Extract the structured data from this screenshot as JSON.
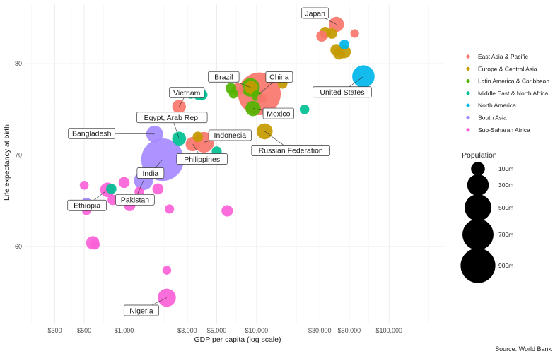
{
  "chart_data": {
    "type": "scatter",
    "title": "",
    "xlabel": "GDP per capita (log scale)",
    "ylabel": "Life expectancy at birth",
    "caption": "Source: World Bank",
    "x_scale": "log",
    "xlim": [
      180,
      260000
    ],
    "ylim": [
      51.5,
      86.5
    ],
    "x_ticks": [
      300,
      500,
      1000,
      3000,
      5000,
      10000,
      30000,
      50000,
      100000
    ],
    "x_tick_labels": [
      "$300",
      "$500",
      "$1,000",
      "$3,000",
      "$5,000",
      "$10,000",
      "$30,000",
      "$50,000",
      "$100,000"
    ],
    "y_ticks": [
      60,
      70,
      80
    ],
    "y_tick_labels": [
      "60",
      "70",
      "80"
    ],
    "grid": true,
    "legend_position": "right",
    "color_legend": [
      {
        "region": "East Asia & Pacific",
        "label": "East Asia & Pacific",
        "color": "#F8766D"
      },
      {
        "region": "Europe & Central Asia",
        "label": "Europe & Central Asia",
        "color": "#C49A00"
      },
      {
        "region": "Latin America & Caribbean",
        "label": "Latin America & Caribbean",
        "color": "#53B400"
      },
      {
        "region": "Middle East & North Africa",
        "label": "Middle East & North Africa",
        "color": "#00C094"
      },
      {
        "region": "North America",
        "label": "North America",
        "color": "#00B6EB"
      },
      {
        "region": "South Asia",
        "label": "South Asia",
        "color": "#A58AFF"
      },
      {
        "region": "Sub-Saharan Africa",
        "label": "Sub-Saharan Africa",
        "color": "#FB61D7"
      }
    ],
    "size_legend": {
      "title": "Population",
      "entries": [
        {
          "pop_m": 100,
          "label": "100m"
        },
        {
          "pop_m": 300,
          "label": "300m"
        },
        {
          "pop_m": 500,
          "label": "500m"
        },
        {
          "pop_m": 700,
          "label": "700m"
        },
        {
          "pop_m": 900,
          "label": "900m"
        }
      ]
    },
    "points": [
      {
        "country": "China",
        "region": "East Asia & Pacific",
        "x": 10500,
        "y": 76.7,
        "pop_m": 1410
      },
      {
        "country": "India",
        "region": "South Asia",
        "x": 1950,
        "y": 69.5,
        "pop_m": 1400
      },
      {
        "country": "United States",
        "region": "North America",
        "x": 64000,
        "y": 78.6,
        "pop_m": 330
      },
      {
        "country": "Indonesia",
        "region": "East Asia & Pacific",
        "x": 4000,
        "y": 71.4,
        "pop_m": 270
      },
      {
        "country": "Pakistan",
        "region": "South Asia",
        "x": 1400,
        "y": 67.2,
        "pop_m": 220
      },
      {
        "country": "Nigeria",
        "region": "Sub-Saharan Africa",
        "x": 2100,
        "y": 54.4,
        "pop_m": 200
      },
      {
        "country": "Brazil",
        "region": "Latin America & Caribbean",
        "x": 9000,
        "y": 77.4,
        "pop_m": 210
      },
      {
        "country": "Bangladesh",
        "region": "South Asia",
        "x": 1700,
        "y": 72.3,
        "pop_m": 165
      },
      {
        "country": "Russian Federation",
        "region": "Europe & Central Asia",
        "x": 11500,
        "y": 72.6,
        "pop_m": 145
      },
      {
        "country": "Mexico",
        "region": "Latin America & Caribbean",
        "x": 9400,
        "y": 75.1,
        "pop_m": 128
      },
      {
        "country": "Japan",
        "region": "East Asia & Pacific",
        "x": 40000,
        "y": 84.3,
        "pop_m": 126
      },
      {
        "country": "Ethiopia",
        "region": "Sub-Saharan Africa",
        "x": 750,
        "y": 66.2,
        "pop_m": 115
      },
      {
        "country": "Philippines",
        "region": "East Asia & Pacific",
        "x": 3300,
        "y": 71.2,
        "pop_m": 110
      },
      {
        "country": "Egypt, Arab Rep.",
        "region": "Middle East & North Africa",
        "x": 2600,
        "y": 71.8,
        "pop_m": 100
      },
      {
        "country": "Vietnam",
        "region": "East Asia & Pacific",
        "x": 2600,
        "y": 75.3,
        "pop_m": 97
      },
      {
        "country": "",
        "region": "Sub-Saharan Africa",
        "x": 580,
        "y": 60.4,
        "pop_m": 90
      },
      {
        "country": "",
        "region": "Europe & Central Asia",
        "x": 9100,
        "y": 77.4,
        "pop_m": 84
      },
      {
        "country": "",
        "region": "Europe & Central Asia",
        "x": 46000,
        "y": 81.3,
        "pop_m": 83
      },
      {
        "country": "",
        "region": "Middle East & North Africa",
        "x": 3700,
        "y": 76.7,
        "pop_m": 84
      },
      {
        "country": "",
        "region": "East Asia & Pacific",
        "x": 7200,
        "y": 77.2,
        "pop_m": 70
      },
      {
        "country": "",
        "region": "Europe & Central Asia",
        "x": 42000,
        "y": 81.1,
        "pop_m": 67
      },
      {
        "country": "",
        "region": "Europe & Central Asia",
        "x": 40000,
        "y": 81.5,
        "pop_m": 67
      },
      {
        "country": "",
        "region": "Sub-Saharan Africa",
        "x": 1100,
        "y": 64.5,
        "pop_m": 60
      },
      {
        "country": "",
        "region": "Europe & Central Asia",
        "x": 33000,
        "y": 83.4,
        "pop_m": 60
      },
      {
        "country": "",
        "region": "Sub-Saharan Africa",
        "x": 6000,
        "y": 63.9,
        "pop_m": 59
      },
      {
        "country": "",
        "region": "Sub-Saharan Africa",
        "x": 1800,
        "y": 66.3,
        "pop_m": 54
      },
      {
        "country": "",
        "region": "Sub-Saharan Africa",
        "x": 1000,
        "y": 67.0,
        "pop_m": 53
      },
      {
        "country": "",
        "region": "East Asia & Pacific",
        "x": 31000,
        "y": 83.0,
        "pop_m": 52
      },
      {
        "country": "",
        "region": "Latin America & Caribbean",
        "x": 6400,
        "y": 77.3,
        "pop_m": 50
      },
      {
        "country": "",
        "region": "Sub-Saharan Africa",
        "x": 820,
        "y": 65.1,
        "pop_m": 44
      },
      {
        "country": "",
        "region": "Europe & Central Asia",
        "x": 37000,
        "y": 83.3,
        "pop_m": 47
      },
      {
        "country": "",
        "region": "Middle East & North Africa",
        "x": 800,
        "y": 66.3,
        "pop_m": 44
      },
      {
        "country": "",
        "region": "Latin America & Caribbean",
        "x": 10000,
        "y": 76.5,
        "pop_m": 45
      },
      {
        "country": "",
        "region": "Middle East & North Africa",
        "x": 3900,
        "y": 76.6,
        "pop_m": 43
      },
      {
        "country": "",
        "region": "Europe & Central Asia",
        "x": 3600,
        "y": 72.0,
        "pop_m": 44
      },
      {
        "country": "",
        "region": "Middle East & North Africa",
        "x": 5000,
        "y": 70.4,
        "pop_m": 40
      },
      {
        "country": "",
        "region": "North America",
        "x": 46000,
        "y": 82.1,
        "pop_m": 38
      },
      {
        "country": "",
        "region": "Europe & Central Asia",
        "x": 15700,
        "y": 77.8,
        "pop_m": 38
      },
      {
        "country": "",
        "region": "Sub-Saharan Africa",
        "x": 600,
        "y": 60.2,
        "pop_m": 39
      },
      {
        "country": "",
        "region": "Middle East & North Africa",
        "x": 3200,
        "y": 76.7,
        "pop_m": 37
      },
      {
        "country": "",
        "region": "Middle East & North Africa",
        "x": 23000,
        "y": 75.0,
        "pop_m": 35
      },
      {
        "country": "",
        "region": "Sub-Saharan Africa",
        "x": 1300,
        "y": 66.0,
        "pop_m": 33
      },
      {
        "country": "",
        "region": "East Asia & Pacific",
        "x": 11000,
        "y": 76.2,
        "pop_m": 32
      },
      {
        "country": "",
        "region": "South Asia",
        "x": 520,
        "y": 64.8,
        "pop_m": 39
      },
      {
        "country": "",
        "region": "Sub-Saharan Africa",
        "x": 2200,
        "y": 64.1,
        "pop_m": 31
      },
      {
        "country": "",
        "region": "Latin America & Caribbean",
        "x": 6700,
        "y": 76.7,
        "pop_m": 33
      },
      {
        "country": "",
        "region": "East Asia & Pacific",
        "x": 1400,
        "y": 65.3,
        "pop_m": 26
      },
      {
        "country": "",
        "region": "Sub-Saharan Africa",
        "x": 500,
        "y": 66.7,
        "pop_m": 28
      },
      {
        "country": "",
        "region": "Sub-Saharan Africa",
        "x": 2100,
        "y": 57.4,
        "pop_m": 27
      },
      {
        "country": "",
        "region": "East Asia & Pacific",
        "x": 55000,
        "y": 83.3,
        "pop_m": 25
      },
      {
        "country": "",
        "region": "Sub-Saharan Africa",
        "x": 520,
        "y": 63.9,
        "pop_m": 25
      }
    ]
  }
}
